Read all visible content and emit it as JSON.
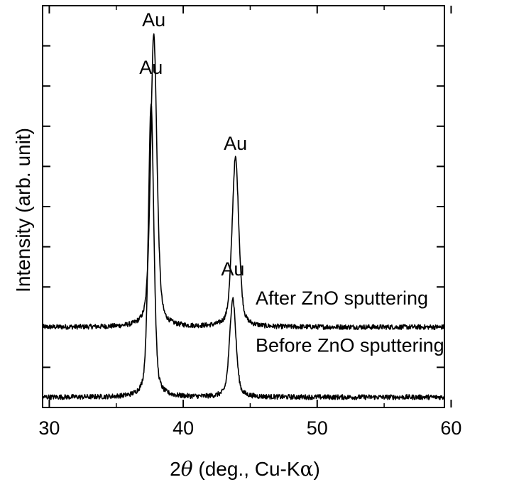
{
  "chart_data": {
    "type": "line",
    "title": "",
    "xlabel": "2θ (deg., Cu-Kα)",
    "xlabel_parts": {
      "prefix": "2",
      "theta": "θ",
      "suffix": " (deg., Cu-K",
      "alpha": "α",
      "close": ")"
    },
    "ylabel": "Intensity (arb. unit)",
    "xlim": [
      29.5,
      59.5
    ],
    "x_ticks": [
      30,
      40,
      50,
      60
    ],
    "y_ticks_shown": false,
    "grid": false,
    "legend": "none",
    "series": [
      {
        "name": "After ZnO sputtering",
        "baseline": 0.34,
        "peaks": [
          {
            "x": 37.8,
            "height": 1.42,
            "width": 0.28
          },
          {
            "x": 43.9,
            "height": 0.82,
            "width": 0.3
          }
        ],
        "noise": 0.012
      },
      {
        "name": "Before ZnO sputtering",
        "baseline": 0.0,
        "peaks": [
          {
            "x": 37.6,
            "height": 1.43,
            "width": 0.24
          },
          {
            "x": 43.7,
            "height": 0.48,
            "width": 0.28
          }
        ],
        "noise": 0.012
      }
    ],
    "annotations": [
      {
        "text": "Au",
        "x": 37.8,
        "y": 1.8,
        "series": "After ZnO sputtering"
      },
      {
        "text": "Au",
        "x": 43.9,
        "y": 1.2,
        "series": "After ZnO sputtering"
      },
      {
        "text": "Au",
        "x": 37.6,
        "y": 1.57,
        "series": "Before ZnO sputtering"
      },
      {
        "text": "Au",
        "x": 43.7,
        "y": 0.59,
        "series": "Before ZnO sputtering"
      }
    ],
    "curve_labels": [
      {
        "text": "After ZnO sputtering",
        "x": 45.4,
        "y": 0.45
      },
      {
        "text": "Before ZnO sputtering",
        "x": 45.4,
        "y": 0.22
      }
    ]
  }
}
